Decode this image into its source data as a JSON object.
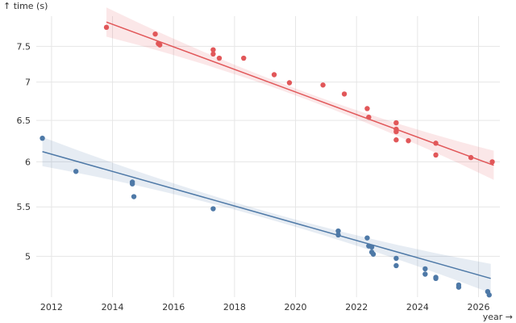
{
  "chart_data": {
    "type": "scatter",
    "title": "",
    "xlabel": "year →",
    "ylabel": "↑ time (s)",
    "y_scale": "log",
    "xlim": [
      2011.5,
      2026.7
    ],
    "ylim": [
      4.62,
      7.95
    ],
    "x_ticks": [
      2012,
      2014,
      2016,
      2018,
      2020,
      2022,
      2024,
      2026
    ],
    "x_tick_labels": [
      "2012",
      "2014",
      "2016",
      "2018",
      "2020",
      "2022",
      "2024",
      "2026"
    ],
    "y_ticks": [
      5,
      5.5,
      6,
      6.5,
      7,
      7.5
    ],
    "y_tick_labels": [
      "5",
      "5.5",
      "6",
      "6.5",
      "7",
      "7.5"
    ],
    "grid": true,
    "series": [
      {
        "color": "#e15759",
        "trend": {
          "x": [
            2013.8,
            2026.5
          ],
          "y": [
            7.86,
            5.96
          ]
        },
        "points": [
          [
            2013.8,
            7.78
          ],
          [
            2015.4,
            7.68
          ],
          [
            2015.5,
            7.54
          ],
          [
            2015.55,
            7.52
          ],
          [
            2017.3,
            7.45
          ],
          [
            2017.3,
            7.39
          ],
          [
            2017.5,
            7.33
          ],
          [
            2018.3,
            7.33
          ],
          [
            2019.3,
            7.1
          ],
          [
            2019.8,
            6.99
          ],
          [
            2020.9,
            6.96
          ],
          [
            2021.6,
            6.84
          ],
          [
            2022.35,
            6.65
          ],
          [
            2022.4,
            6.54
          ],
          [
            2023.3,
            6.47
          ],
          [
            2023.3,
            6.39
          ],
          [
            2023.3,
            6.36
          ],
          [
            2023.3,
            6.26
          ],
          [
            2023.7,
            6.25
          ],
          [
            2024.6,
            6.22
          ],
          [
            2024.6,
            6.08
          ],
          [
            2025.75,
            6.05
          ],
          [
            2026.45,
            6.0
          ]
        ]
      },
      {
        "color": "#4e79a7",
        "trend": {
          "x": [
            2011.7,
            2026.4
          ],
          "y": [
            6.12,
            4.79
          ]
        },
        "points": [
          [
            2011.7,
            6.28
          ],
          [
            2012.8,
            5.89
          ],
          [
            2014.65,
            5.77
          ],
          [
            2014.65,
            5.75
          ],
          [
            2014.7,
            5.61
          ],
          [
            2017.3,
            5.48
          ],
          [
            2021.4,
            5.25
          ],
          [
            2021.4,
            5.21
          ],
          [
            2022.35,
            5.18
          ],
          [
            2022.4,
            5.1
          ],
          [
            2022.5,
            5.09
          ],
          [
            2022.5,
            5.04
          ],
          [
            2022.55,
            5.02
          ],
          [
            2023.3,
            4.98
          ],
          [
            2023.3,
            4.91
          ],
          [
            2024.25,
            4.88
          ],
          [
            2024.25,
            4.83
          ],
          [
            2024.6,
            4.8
          ],
          [
            2024.6,
            4.79
          ],
          [
            2025.35,
            4.73
          ],
          [
            2025.35,
            4.71
          ],
          [
            2026.3,
            4.67
          ],
          [
            2026.35,
            4.64
          ]
        ]
      }
    ]
  }
}
